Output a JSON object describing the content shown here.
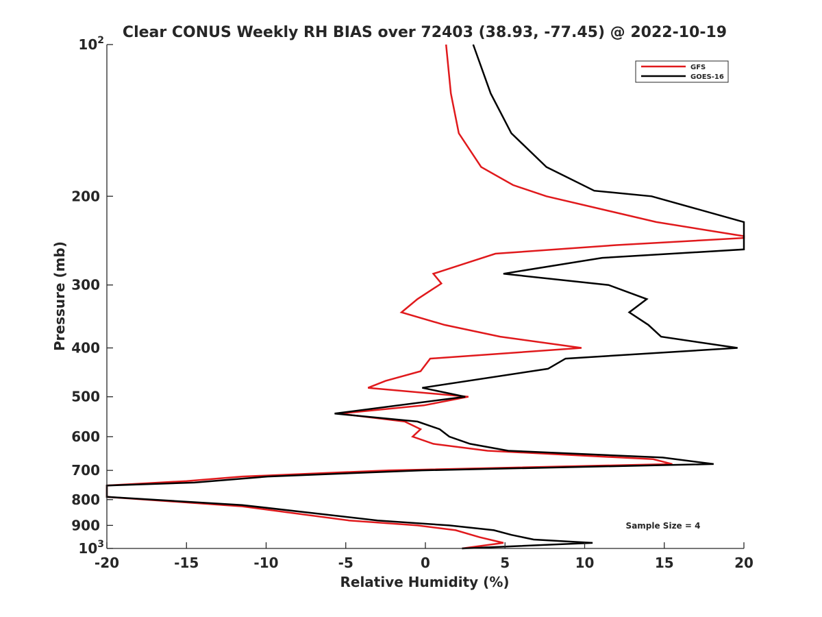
{
  "chart_data": {
    "type": "line",
    "title": "Clear CONUS Weekly RH BIAS over 72403 (38.93, -77.45) @ 2022-10-19",
    "xlabel": "Relative Humidity (%)",
    "ylabel": "Pressure (mb)",
    "xlim": [
      -20,
      20
    ],
    "ylim": [
      100,
      1000
    ],
    "y_scale": "log",
    "y_reversed": true,
    "grid": false,
    "legend_position": "top-right",
    "x_ticks": [
      "-20",
      "-15",
      "-10",
      "-5",
      "0",
      "5",
      "10",
      "15",
      "20"
    ],
    "y_ticks": [
      {
        "value": 100,
        "base": "10",
        "exp": "2"
      },
      {
        "value": 200,
        "label": "200"
      },
      {
        "value": 300,
        "label": "300"
      },
      {
        "value": 400,
        "label": "400"
      },
      {
        "value": 500,
        "label": "500"
      },
      {
        "value": 600,
        "label": "600"
      },
      {
        "value": 700,
        "label": "700"
      },
      {
        "value": 800,
        "label": "800"
      },
      {
        "value": 900,
        "label": "900"
      },
      {
        "value": 1000,
        "base": "10",
        "exp": "3"
      }
    ],
    "annotation": "Sample Size = 4",
    "series": [
      {
        "name": "GFS",
        "color": "#e0191c",
        "points": [
          [
            1.3,
            100
          ],
          [
            1.6,
            125
          ],
          [
            2.1,
            150
          ],
          [
            3.5,
            175
          ],
          [
            5.5,
            190
          ],
          [
            7.6,
            200
          ],
          [
            14.5,
            225
          ],
          [
            20.0,
            240
          ],
          [
            20.0,
            242
          ],
          [
            12.0,
            250
          ],
          [
            4.4,
            260
          ],
          [
            0.5,
            285
          ],
          [
            1.0,
            298
          ],
          [
            -0.5,
            320
          ],
          [
            -1.5,
            340
          ],
          [
            1.2,
            360
          ],
          [
            4.7,
            380
          ],
          [
            9.8,
            400
          ],
          [
            0.3,
            420
          ],
          [
            -0.3,
            445
          ],
          [
            -2.5,
            465
          ],
          [
            -3.6,
            480
          ],
          [
            2.7,
            500
          ],
          [
            -0.1,
            520
          ],
          [
            -5.4,
            540
          ],
          [
            -1.3,
            560
          ],
          [
            -0.3,
            580
          ],
          [
            -0.8,
            600
          ],
          [
            0.5,
            620
          ],
          [
            3.9,
            640
          ],
          [
            14.3,
            665
          ],
          [
            15.5,
            680
          ],
          [
            -2.3,
            700
          ],
          [
            -11.5,
            720
          ],
          [
            -15.0,
            735
          ],
          [
            -20.0,
            750
          ],
          [
            -20.0,
            790
          ],
          [
            -11.5,
            825
          ],
          [
            -4.8,
            880
          ],
          [
            -0.5,
            900
          ],
          [
            1.9,
            920
          ],
          [
            3.4,
            950
          ],
          [
            4.9,
            975
          ],
          [
            2.3,
            1000
          ]
        ]
      },
      {
        "name": "GOES-16",
        "color": "#000000",
        "points": [
          [
            3.0,
            100
          ],
          [
            4.1,
            125
          ],
          [
            5.4,
            150
          ],
          [
            7.6,
            175
          ],
          [
            10.6,
            195
          ],
          [
            14.2,
            200
          ],
          [
            20.0,
            225
          ],
          [
            20.0,
            255
          ],
          [
            11.1,
            265
          ],
          [
            4.9,
            285
          ],
          [
            11.5,
            300
          ],
          [
            13.9,
            320
          ],
          [
            12.8,
            340
          ],
          [
            14.0,
            360
          ],
          [
            14.8,
            380
          ],
          [
            19.6,
            400
          ],
          [
            8.8,
            420
          ],
          [
            7.7,
            440
          ],
          [
            -0.2,
            480
          ],
          [
            2.5,
            500
          ],
          [
            -5.7,
            540
          ],
          [
            -0.5,
            560
          ],
          [
            0.9,
            580
          ],
          [
            1.5,
            600
          ],
          [
            2.8,
            620
          ],
          [
            5.2,
            640
          ],
          [
            14.9,
            660
          ],
          [
            18.1,
            680
          ],
          [
            -0.2,
            700
          ],
          [
            -9.9,
            720
          ],
          [
            -14.5,
            740
          ],
          [
            -20.0,
            750
          ],
          [
            -20.0,
            790
          ],
          [
            -11.5,
            820
          ],
          [
            -3.0,
            880
          ],
          [
            1.5,
            900
          ],
          [
            4.3,
            920
          ],
          [
            5.4,
            940
          ],
          [
            6.8,
            960
          ],
          [
            10.5,
            975
          ],
          [
            2.3,
            1000
          ]
        ]
      }
    ]
  }
}
